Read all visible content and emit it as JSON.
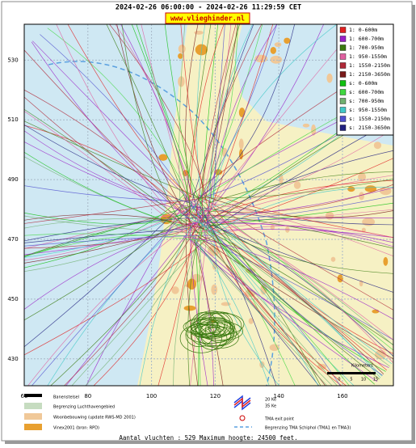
{
  "header": {
    "title": "2024-02-26 06:00:00 - 2024-02-26 11:29:59 CET",
    "site": "www.vlieghinder.nl"
  },
  "map": {
    "xlim": [
      60,
      176
    ],
    "ylim": [
      421,
      542
    ],
    "xticks": [
      60,
      80,
      100,
      120,
      140,
      160
    ],
    "yticks": [
      430,
      450,
      470,
      490,
      510,
      530
    ]
  },
  "legend": [
    {
      "label": "1: 0-600m",
      "color": "#e02020"
    },
    {
      "label": "1: 600-700m",
      "color": "#9a20c8"
    },
    {
      "label": "1: 700-950m",
      "color": "#3a7a10"
    },
    {
      "label": "1: 950-1550m",
      "color": "#e060a0"
    },
    {
      "label": "1: 1550-2150m",
      "color": "#b02838"
    },
    {
      "label": "1: 2150-3650m",
      "color": "#7a1a1a"
    },
    {
      "label": "s: 0-600m",
      "color": "#10c010"
    },
    {
      "label": "s: 600-700m",
      "color": "#40d840"
    },
    {
      "label": "s: 700-950m",
      "color": "#70b070"
    },
    {
      "label": "s: 950-1550m",
      "color": "#40c8c8"
    },
    {
      "label": "s: 1550-2150m",
      "color": "#5050d0"
    },
    {
      "label": "s: 2150-3650m",
      "color": "#202080"
    }
  ],
  "scale": {
    "title": "Kilometers",
    "labels": [
      "0",
      "5",
      "10",
      "15"
    ]
  },
  "key": {
    "runways": "Banenstelsel",
    "airport": "Begrenzing Luchthavengebied",
    "housing": "Woonbebouwing (update RWS-MD 2001)",
    "vinex": "Vinex2001 (bron: RPD)",
    "kw20": "20 Ke",
    "kw35": "35 Ke",
    "exit": "TMA exit point",
    "tma": "Begrenzing TMA Schiphol  (TMA1 en TMA3)"
  },
  "footer": "Aantal vluchten : 529 Maximum hoogte: 24500 feet."
}
